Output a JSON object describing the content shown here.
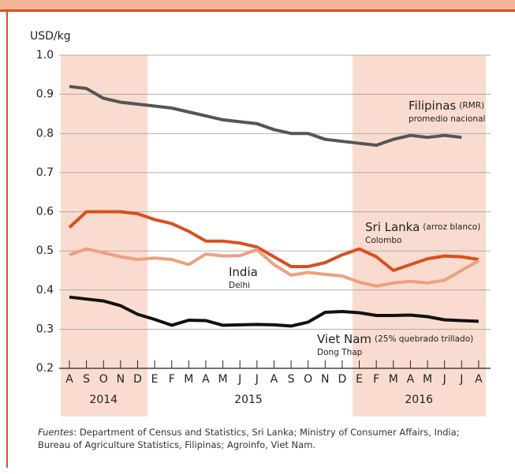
{
  "chart_data": {
    "type": "line",
    "y_label": "USD/kg",
    "categories": [
      "A",
      "S",
      "O",
      "N",
      "D",
      "E",
      "F",
      "M",
      "A",
      "M",
      "J",
      "J",
      "A",
      "S",
      "O",
      "N",
      "D",
      "E",
      "F",
      "M",
      "A",
      "M",
      "J",
      "J",
      "A"
    ],
    "years": [
      "2014",
      "2015",
      "2016"
    ],
    "ylim": [
      0.2,
      1.0
    ],
    "yticks": [
      0.2,
      0.3,
      0.4,
      0.5,
      0.6,
      0.7,
      0.8,
      0.9,
      {
        "value": 1.0,
        "label": "1.0"
      }
    ],
    "grid": true,
    "series": [
      {
        "name": "Filipinas",
        "qualifier": "(RMR)",
        "sublabel": "promedio nacional",
        "color": "#555555",
        "values": [
          0.92,
          0.915,
          0.89,
          0.88,
          0.875,
          0.87,
          0.865,
          0.855,
          0.845,
          0.835,
          0.83,
          0.825,
          0.81,
          0.8,
          0.8,
          0.785,
          0.78,
          0.775,
          0.77,
          0.785,
          0.795,
          0.79,
          0.795,
          0.79,
          null
        ]
      },
      {
        "name": "Sri Lanka",
        "qualifier": "(arroz blanco)",
        "sublabel": "Colombo",
        "color": "#d94f1e",
        "values": [
          0.56,
          0.6,
          0.6,
          0.6,
          0.595,
          0.58,
          0.57,
          0.55,
          0.525,
          0.525,
          0.52,
          0.51,
          0.485,
          0.46,
          0.46,
          0.47,
          0.49,
          0.505,
          0.485,
          0.45,
          0.465,
          0.48,
          0.487,
          0.485,
          0.478
        ]
      },
      {
        "name": "India",
        "sublabel": "Delhi",
        "color": "#eea07f",
        "values": [
          0.49,
          0.505,
          0.495,
          0.485,
          0.478,
          0.482,
          0.478,
          0.465,
          0.492,
          0.487,
          0.488,
          0.503,
          0.465,
          0.438,
          0.445,
          0.44,
          0.436,
          0.42,
          0.41,
          0.418,
          0.422,
          0.418,
          0.425,
          0.45,
          0.475
        ]
      },
      {
        "name": "Viet Nam",
        "qualifier": "(25% quebrado trillado)",
        "sublabel": "Dong Thap",
        "color": "#111111",
        "values": [
          0.382,
          0.377,
          0.372,
          0.36,
          0.338,
          0.325,
          0.31,
          0.323,
          0.322,
          0.31,
          0.311,
          0.312,
          0.311,
          0.308,
          0.318,
          0.343,
          0.345,
          0.342,
          0.335,
          0.335,
          0.336,
          0.332,
          0.324,
          0.322,
          0.32
        ]
      }
    ],
    "source_label": "Fuentes",
    "source_text": ": Department of Census and Statistics, Sri Lanka; Ministry of Consumer Affairs, India; Bureau of Agriculture Statistics, Filipinas; Agroinfo, Viet Nam."
  }
}
